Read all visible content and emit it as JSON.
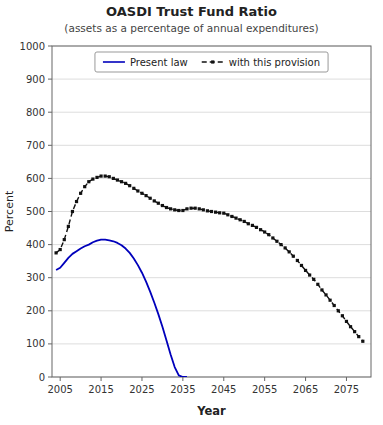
{
  "chart_data": {
    "type": "line",
    "title": "OASDI Trust Fund Ratio",
    "subtitle": "(assets as a percentage of annual expenditures)",
    "x_label": "Year",
    "y_label": "Percent",
    "xlim": [
      2003,
      2081
    ],
    "xticks": [
      2005,
      2015,
      2025,
      2035,
      2045,
      2055,
      2065,
      2075
    ],
    "ylim": [
      0,
      1000
    ],
    "yticks": [
      0,
      100,
      200,
      300,
      400,
      500,
      600,
      700,
      800,
      900,
      1000
    ],
    "grid": true,
    "legend": "top",
    "series": [
      {
        "name": "Present law",
        "color": "#0000bb",
        "line_style": "solid",
        "x": [
          2004,
          2005,
          2006,
          2007,
          2008,
          2009,
          2010,
          2011,
          2012,
          2013,
          2014,
          2015,
          2016,
          2017,
          2018,
          2019,
          2020,
          2021,
          2022,
          2023,
          2024,
          2025,
          2026,
          2027,
          2028,
          2029,
          2030,
          2031,
          2032,
          2033,
          2034,
          2035,
          2036
        ],
        "values": [
          323,
          330,
          345,
          360,
          372,
          380,
          388,
          395,
          400,
          407,
          412,
          415,
          415,
          413,
          410,
          405,
          398,
          388,
          375,
          358,
          338,
          315,
          288,
          258,
          225,
          190,
          152,
          110,
          68,
          30,
          5,
          0,
          0
        ]
      },
      {
        "name": "with this provision",
        "color": "#111111",
        "line_style": "dashed",
        "marker": "square",
        "x": [
          2004,
          2005,
          2006,
          2007,
          2008,
          2009,
          2010,
          2011,
          2012,
          2013,
          2014,
          2015,
          2016,
          2017,
          2018,
          2019,
          2020,
          2021,
          2022,
          2023,
          2024,
          2025,
          2026,
          2027,
          2028,
          2029,
          2030,
          2031,
          2032,
          2033,
          2034,
          2035,
          2036,
          2037,
          2038,
          2039,
          2040,
          2041,
          2042,
          2043,
          2044,
          2045,
          2046,
          2047,
          2048,
          2049,
          2050,
          2051,
          2052,
          2053,
          2054,
          2055,
          2056,
          2057,
          2058,
          2059,
          2060,
          2061,
          2062,
          2063,
          2064,
          2065,
          2066,
          2067,
          2068,
          2069,
          2070,
          2071,
          2072,
          2073,
          2074,
          2075,
          2076,
          2077,
          2078,
          2079
        ],
        "values": [
          375,
          385,
          415,
          455,
          500,
          530,
          555,
          575,
          590,
          598,
          603,
          607,
          607,
          605,
          600,
          595,
          590,
          585,
          578,
          570,
          562,
          555,
          548,
          540,
          532,
          525,
          518,
          512,
          508,
          505,
          503,
          503,
          508,
          510,
          510,
          508,
          505,
          502,
          500,
          498,
          496,
          495,
          490,
          485,
          480,
          475,
          470,
          463,
          458,
          452,
          445,
          438,
          430,
          420,
          410,
          400,
          390,
          378,
          365,
          352,
          337,
          322,
          308,
          295,
          280,
          263,
          248,
          232,
          216,
          200,
          185,
          168,
          152,
          137,
          122,
          108
        ]
      }
    ]
  }
}
